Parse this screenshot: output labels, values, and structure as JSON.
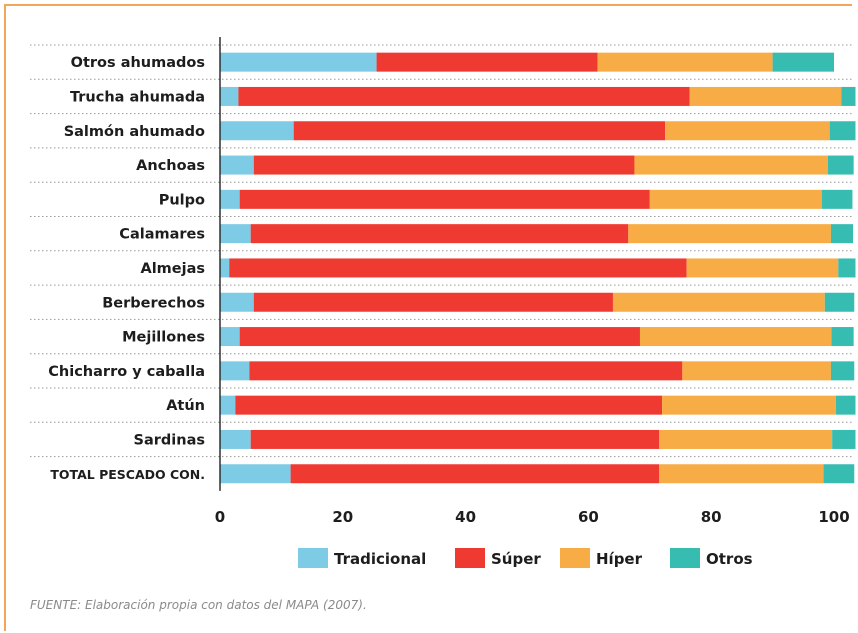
{
  "chart_data": {
    "type": "bar",
    "orientation": "horizontal",
    "stacked": true,
    "categories": [
      "Otros ahumados",
      "Trucha ahumada",
      "Salmón ahumado",
      "Anchoas",
      "Pulpo",
      "Calamares",
      "Almejas",
      "Berberechos",
      "Mejillones",
      "Chicharro y caballa",
      "Atún",
      "Sardinas",
      "TOTAL PESCADO CON."
    ],
    "series": [
      {
        "name": "Tradicional",
        "color": "#7ecbe6",
        "values": [
          25.5,
          3,
          12,
          5.5,
          3.2,
          5,
          1.5,
          5.5,
          3.2,
          4.8,
          2.5,
          5,
          11.5
        ]
      },
      {
        "name": "Súper",
        "color": "#ef3a32",
        "values": [
          36,
          73.5,
          60.5,
          62,
          66.8,
          61.5,
          74.5,
          58.5,
          65.2,
          70.5,
          69.5,
          66.5,
          60
        ]
      },
      {
        "name": "Híper",
        "color": "#f7ac45",
        "values": [
          28.5,
          24.7,
          26.8,
          31.5,
          28,
          33,
          24.7,
          34.5,
          31.2,
          24.2,
          28.3,
          28.2,
          26.8
        ]
      },
      {
        "name": "Otros",
        "color": "#36bcb1",
        "values": [
          10,
          2.3,
          4.2,
          4.2,
          5,
          3.6,
          2.8,
          4.8,
          3.6,
          3.8,
          3.2,
          3.8,
          5
        ]
      }
    ],
    "xlim": [
      0,
      103
    ],
    "xticks": [
      "0",
      "20",
      "40",
      "60",
      "80",
      "100"
    ],
    "grid": "dotted horizontal separators",
    "legend_position": "bottom"
  },
  "source_text": "FUENTE: Elaboración propia con datos del MAPA (2007)."
}
